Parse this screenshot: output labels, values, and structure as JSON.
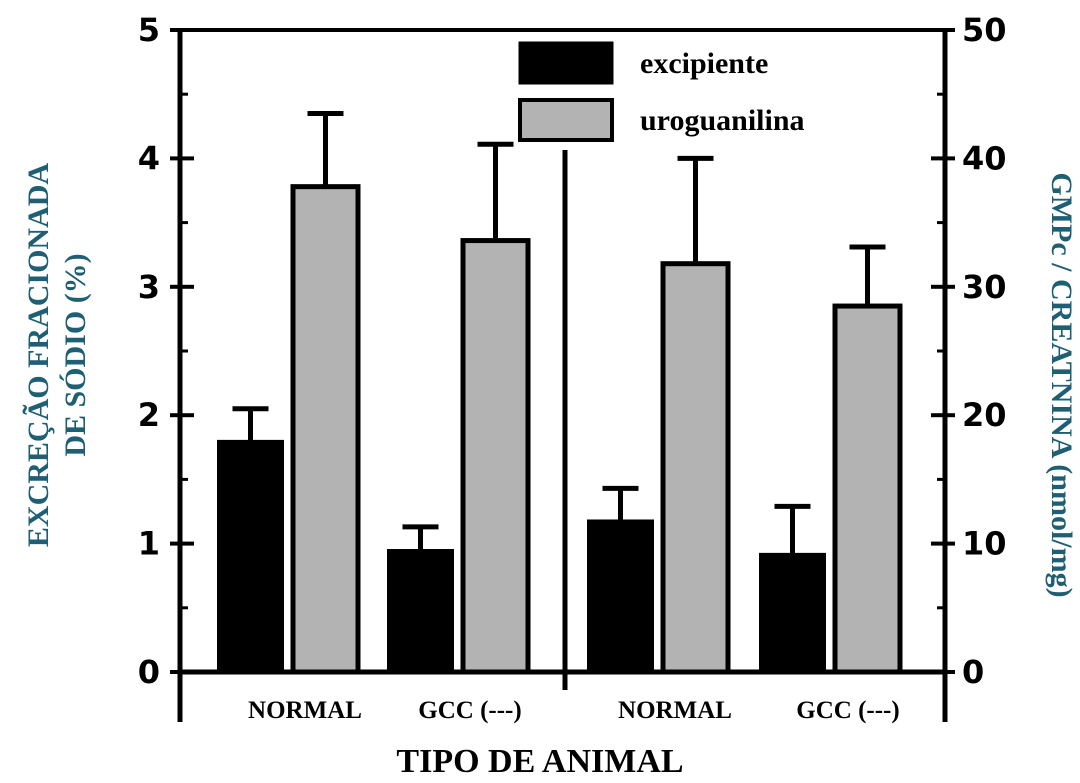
{
  "colors": {
    "excipiente": "#000000",
    "uroguanilina": "#b3b3b3",
    "ylabel": "#1f5f73"
  },
  "chart_data": [
    {
      "type": "bar",
      "panel": "left",
      "categories": [
        "NORMAL",
        "GCC (---)"
      ],
      "series": [
        {
          "name": "excipiente",
          "values": [
            1.8,
            0.95
          ],
          "error": [
            0.25,
            0.18
          ]
        },
        {
          "name": "uroguanilina",
          "values": [
            3.78,
            3.36
          ],
          "error": [
            0.57,
            0.75
          ]
        }
      ],
      "ylabel_lines": [
        "EXCREÇÃO FRACIONADA",
        "DE SÓDIO (%)"
      ],
      "ylim": [
        0,
        5
      ],
      "yticks": [
        "0",
        "1",
        "2",
        "3",
        "4",
        "5"
      ]
    },
    {
      "type": "bar",
      "panel": "right",
      "categories": [
        "NORMAL",
        "GCC (---)"
      ],
      "series": [
        {
          "name": "excipiente",
          "values": [
            11.8,
            9.2
          ],
          "error": [
            2.5,
            3.7
          ]
        },
        {
          "name": "uroguanilina",
          "values": [
            31.8,
            28.5
          ],
          "error": [
            8.2,
            4.6
          ]
        }
      ],
      "ylabel": "GMPc / CREATNINA (nmol/mg)",
      "ylim": [
        0,
        50
      ],
      "yticks": [
        "0",
        "10",
        "20",
        "30",
        "40",
        "50"
      ]
    }
  ],
  "xlabel": "TIPO DE ANIMAL",
  "legend": [
    "excipiente",
    "uroguanilina"
  ]
}
